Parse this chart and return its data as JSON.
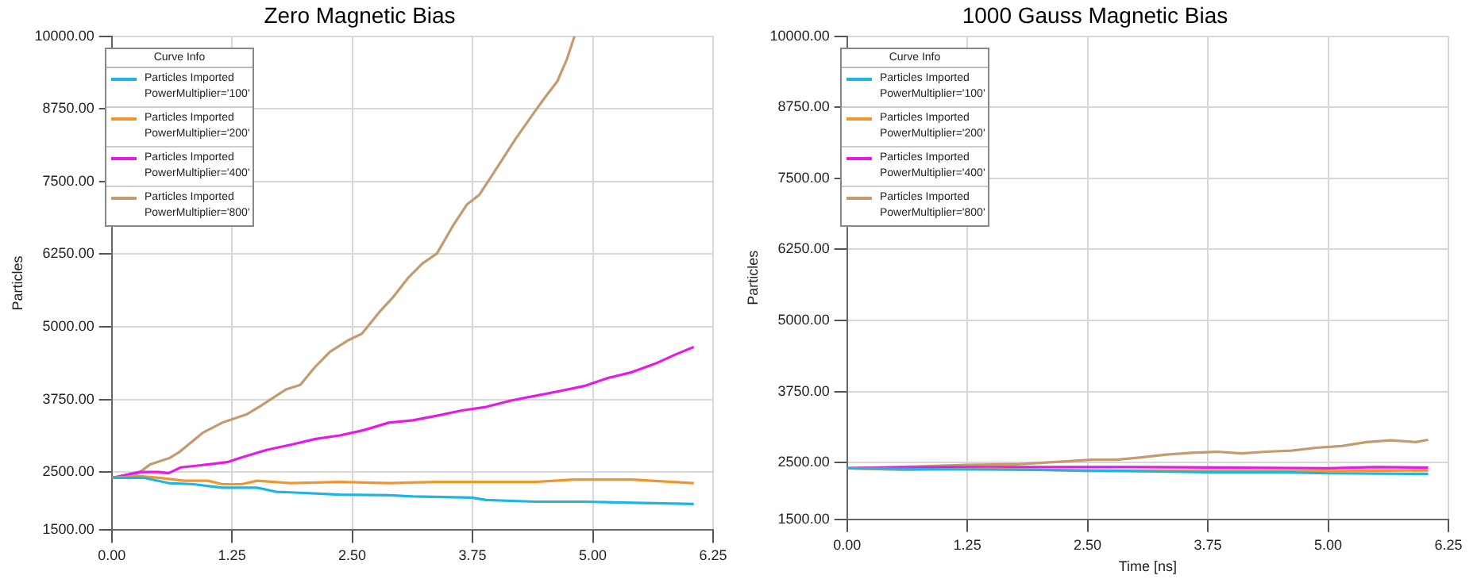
{
  "chart_data": [
    {
      "type": "line",
      "title": "Zero Magnetic Bias",
      "ylabel": "Particles",
      "legend_title": "Curve Info",
      "legend": "top left",
      "grid": true,
      "xlim": [
        0,
        6.25
      ],
      "ylim": [
        1500,
        10000
      ],
      "xticks": [
        {
          "value": 0,
          "label": "0.00"
        },
        {
          "value": 1.25,
          "label": "1.25"
        },
        {
          "value": 2.5,
          "label": "2.50"
        },
        {
          "value": 3.75,
          "label": "3.75"
        },
        {
          "value": 5,
          "label": "5.00"
        },
        {
          "value": 6.25,
          "label": "6.25"
        }
      ],
      "yticks": [
        {
          "value": 1500,
          "label": "1500.00"
        },
        {
          "value": 2500,
          "label": "2500.00"
        },
        {
          "value": 3750,
          "label": "3750.00"
        },
        {
          "value": 5000,
          "label": "5000.00"
        },
        {
          "value": 6250,
          "label": "6250.00"
        },
        {
          "value": 7500,
          "label": "7500.00"
        },
        {
          "value": 8750,
          "label": "8750.00"
        },
        {
          "value": 10000,
          "label": "10000.00"
        }
      ],
      "series": [
        {
          "name": "Particles Imported PowerMultiplier='100'",
          "color": "#1eb4e6",
          "x": [
            0,
            0.34,
            0.59,
            0.85,
            1.15,
            1.51,
            1.71,
            1.86,
            2.37,
            2.88,
            3.13,
            3.74,
            3.89,
            4.4,
            4.91,
            5.41,
            6.05
          ],
          "values": [
            2400,
            2400,
            2310,
            2290,
            2230,
            2230,
            2160,
            2150,
            2110,
            2100,
            2080,
            2060,
            2020,
            1990,
            1990,
            1970,
            1950
          ]
        },
        {
          "name": "Particles Imported PowerMultiplier='200'",
          "color": "#f0962d",
          "x": [
            0,
            0.29,
            0.49,
            0.75,
            1.0,
            1.15,
            1.35,
            1.51,
            1.86,
            2.37,
            2.88,
            3.38,
            3.89,
            4.4,
            4.8,
            5.41,
            5.82,
            6.05
          ],
          "values": [
            2400,
            2430,
            2400,
            2350,
            2350,
            2290,
            2290,
            2350,
            2310,
            2330,
            2310,
            2330,
            2330,
            2330,
            2370,
            2370,
            2330,
            2310
          ]
        },
        {
          "name": "Particles Imported PowerMultiplier='400'",
          "color": "#e619e6",
          "x": [
            0,
            0.29,
            0.49,
            0.59,
            0.72,
            1.0,
            1.2,
            1.35,
            1.61,
            1.86,
            2.12,
            2.37,
            2.62,
            2.88,
            3.13,
            3.38,
            3.64,
            3.89,
            4.15,
            4.4,
            4.65,
            4.91,
            5.16,
            5.41,
            5.67,
            5.87,
            6.05
          ],
          "values": [
            2400,
            2500,
            2500,
            2480,
            2580,
            2630,
            2670,
            2750,
            2880,
            2970,
            3070,
            3130,
            3220,
            3350,
            3390,
            3470,
            3560,
            3620,
            3730,
            3810,
            3890,
            3980,
            4120,
            4220,
            4380,
            4530,
            4650
          ]
        },
        {
          "name": "Particles Imported PowerMultiplier='800'",
          "color": "#c39b6e",
          "x": [
            0,
            0.15,
            0.25,
            0.4,
            0.6,
            0.7,
            0.95,
            1.15,
            1.4,
            1.55,
            1.81,
            1.96,
            2.12,
            2.27,
            2.45,
            2.6,
            2.78,
            2.93,
            3.08,
            3.23,
            3.38,
            3.54,
            3.69,
            3.82,
            3.97,
            4.2,
            4.4,
            4.5,
            4.63,
            4.73,
            4.81
          ],
          "values": [
            2400,
            2400,
            2450,
            2630,
            2740,
            2840,
            3180,
            3350,
            3490,
            3640,
            3920,
            4000,
            4320,
            4570,
            4760,
            4880,
            5250,
            5520,
            5840,
            6090,
            6260,
            6720,
            7100,
            7270,
            7650,
            8240,
            8710,
            8940,
            9220,
            9600,
            10000
          ]
        }
      ]
    },
    {
      "type": "line",
      "title": "1000 Gauss Magnetic Bias",
      "xlabel": "Time [ns]",
      "ylabel": "Particles",
      "legend_title": "Curve Info",
      "legend": "top left",
      "grid": true,
      "xlim": [
        0,
        6.25
      ],
      "ylim": [
        1500,
        10000
      ],
      "xticks": [
        {
          "value": 0,
          "label": "0.00"
        },
        {
          "value": 1.25,
          "label": "1.25"
        },
        {
          "value": 2.5,
          "label": "2.50"
        },
        {
          "value": 3.75,
          "label": "3.75"
        },
        {
          "value": 5,
          "label": "5.00"
        },
        {
          "value": 6.25,
          "label": "6.25"
        }
      ],
      "yticks": [
        {
          "value": 1500,
          "label": "1500.00"
        },
        {
          "value": 2500,
          "label": "2500.00"
        },
        {
          "value": 3750,
          "label": "3750.00"
        },
        {
          "value": 5000,
          "label": "5000.00"
        },
        {
          "value": 6250,
          "label": "6250.00"
        },
        {
          "value": 7500,
          "label": "7500.00"
        },
        {
          "value": 8750,
          "label": "8750.00"
        },
        {
          "value": 10000,
          "label": "10000.00"
        }
      ],
      "series": [
        {
          "name": "Particles Imported PowerMultiplier='100'",
          "color": "#1eb4e6",
          "x": [
            0,
            1.0,
            2.0,
            3.0,
            3.75,
            4.5,
            5.0,
            6.04
          ],
          "values": [
            2400,
            2380,
            2370,
            2350,
            2330,
            2330,
            2310,
            2300
          ]
        },
        {
          "name": "Particles Imported PowerMultiplier='200'",
          "color": "#f0962d",
          "x": [
            0,
            0.6,
            1.5,
            2.5,
            4.0,
            5.0,
            6.04
          ],
          "values": [
            2400,
            2370,
            2390,
            2350,
            2350,
            2350,
            2360
          ]
        },
        {
          "name": "Particles Imported PowerMultiplier='400'",
          "color": "#e619e6",
          "x": [
            0,
            1.0,
            2.0,
            3.0,
            4.0,
            5.0,
            5.5,
            6.04
          ],
          "values": [
            2400,
            2420,
            2420,
            2420,
            2410,
            2400,
            2420,
            2410
          ]
        },
        {
          "name": "Particles Imported PowerMultiplier='800'",
          "color": "#c39b6e",
          "x": [
            0,
            0.72,
            1.24,
            1.76,
            2.28,
            2.54,
            2.8,
            3.06,
            3.32,
            3.58,
            3.84,
            4.1,
            4.36,
            4.62,
            4.88,
            5.14,
            5.4,
            5.65,
            5.91,
            6.04
          ],
          "values": [
            2400,
            2430,
            2460,
            2470,
            2520,
            2550,
            2550,
            2590,
            2640,
            2670,
            2690,
            2660,
            2690,
            2710,
            2760,
            2790,
            2860,
            2890,
            2860,
            2900
          ]
        }
      ]
    }
  ]
}
